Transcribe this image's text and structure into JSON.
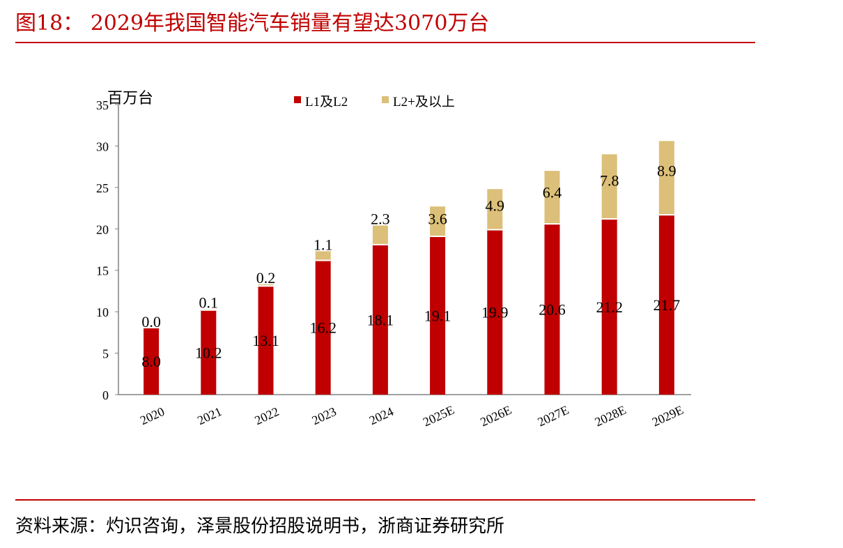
{
  "figure": {
    "title": "图18： 2029年我国智能汽车销量有望达3070万台",
    "source": "资料来源：灼识咨询，泽景股份招股说明书，浙商证券研究所"
  },
  "colors": {
    "accent": "#c00000",
    "series_l1l2": "#c00000",
    "series_l2plus": "#dcbf78",
    "axis": "#808080"
  },
  "chart_data": {
    "type": "bar",
    "stacked": true,
    "title": "",
    "xlabel": "",
    "ylabel": "百万台",
    "ylim": [
      0,
      35
    ],
    "yticks": [
      0,
      5,
      10,
      15,
      20,
      25,
      30,
      35
    ],
    "grid": false,
    "legend_position": "top",
    "categories": [
      "2020",
      "2021",
      "2022",
      "2023",
      "2024",
      "2025E",
      "2026E",
      "2027E",
      "2028E",
      "2029E"
    ],
    "series": [
      {
        "name": "L1及L2",
        "values": [
          8.0,
          10.2,
          13.1,
          16.2,
          18.1,
          19.1,
          19.9,
          20.6,
          21.2,
          21.7
        ]
      },
      {
        "name": "L2+及以上",
        "values": [
          0.0,
          0.1,
          0.2,
          1.1,
          2.3,
          3.6,
          4.9,
          6.4,
          7.8,
          8.9
        ]
      }
    ]
  }
}
